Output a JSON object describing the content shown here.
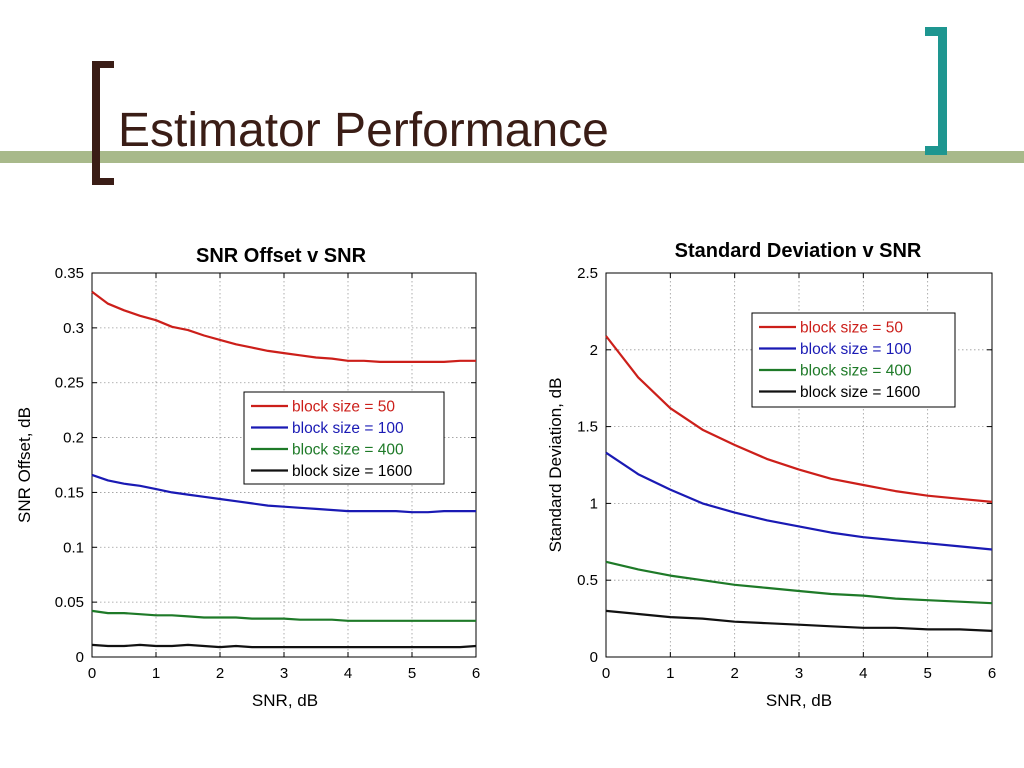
{
  "slide": {
    "title": "Estimator Performance",
    "colors": {
      "title_text": "#3a1d16",
      "left_bracket": "#3a1d16",
      "right_bracket": "#1e9690",
      "rule": "#a8b98a"
    }
  },
  "chart_data": [
    {
      "type": "line",
      "title": "SNR Offset v SNR",
      "xlabel": "SNR, dB",
      "ylabel": "SNR Offset, dB",
      "xlim": [
        0,
        6
      ],
      "ylim": [
        0,
        0.35
      ],
      "xticks": [
        0,
        1,
        2,
        3,
        4,
        5,
        6
      ],
      "xtick_labels": [
        "0",
        "1",
        "2",
        "3",
        "4",
        "5",
        "6"
      ],
      "yticks": [
        0,
        0.05,
        0.1,
        0.15,
        0.2,
        0.25,
        0.3,
        0.35
      ],
      "ytick_labels": [
        "0",
        "0.05",
        "0.1",
        "0.15",
        "0.2",
        "0.25",
        "0.3",
        "0.35"
      ],
      "grid": true,
      "legend_position": "center-right",
      "x": [
        0,
        0.25,
        0.5,
        0.75,
        1.0,
        1.25,
        1.5,
        1.75,
        2.0,
        2.25,
        2.5,
        2.75,
        3.0,
        3.25,
        3.5,
        3.75,
        4.0,
        4.25,
        4.5,
        4.75,
        5.0,
        5.25,
        5.5,
        5.75,
        6.0
      ],
      "series": [
        {
          "name": "block size = 50",
          "color": "#cc1f1a",
          "values": [
            0.333,
            0.322,
            0.316,
            0.311,
            0.307,
            0.301,
            0.298,
            0.293,
            0.289,
            0.285,
            0.282,
            0.279,
            0.277,
            0.275,
            0.273,
            0.272,
            0.27,
            0.27,
            0.269,
            0.269,
            0.269,
            0.269,
            0.269,
            0.27,
            0.27
          ]
        },
        {
          "name": "block size = 100",
          "color": "#1a1ab4",
          "values": [
            0.166,
            0.161,
            0.158,
            0.156,
            0.153,
            0.15,
            0.148,
            0.146,
            0.144,
            0.142,
            0.14,
            0.138,
            0.137,
            0.136,
            0.135,
            0.134,
            0.133,
            0.133,
            0.133,
            0.133,
            0.132,
            0.132,
            0.133,
            0.133,
            0.133
          ]
        },
        {
          "name": "block size = 400",
          "color": "#1e7a28",
          "values": [
            0.042,
            0.04,
            0.04,
            0.039,
            0.038,
            0.038,
            0.037,
            0.036,
            0.036,
            0.036,
            0.035,
            0.035,
            0.035,
            0.034,
            0.034,
            0.034,
            0.033,
            0.033,
            0.033,
            0.033,
            0.033,
            0.033,
            0.033,
            0.033,
            0.033
          ]
        },
        {
          "name": "block size = 1600",
          "color": "#111111",
          "values": [
            0.011,
            0.01,
            0.01,
            0.011,
            0.01,
            0.01,
            0.011,
            0.01,
            0.009,
            0.01,
            0.009,
            0.009,
            0.009,
            0.009,
            0.009,
            0.009,
            0.009,
            0.009,
            0.009,
            0.009,
            0.009,
            0.009,
            0.009,
            0.009,
            0.01
          ]
        }
      ]
    },
    {
      "type": "line",
      "title": "Standard Deviation v SNR",
      "xlabel": "SNR, dB",
      "ylabel": "Standard Deviation, dB",
      "xlim": [
        0,
        6
      ],
      "ylim": [
        0,
        2.5
      ],
      "xticks": [
        0,
        1,
        2,
        3,
        4,
        5,
        6
      ],
      "xtick_labels": [
        "0",
        "1",
        "2",
        "3",
        "4",
        "5",
        "6"
      ],
      "yticks": [
        0,
        0.5,
        1,
        1.5,
        2,
        2.5
      ],
      "ytick_labels": [
        "0",
        "0.5",
        "1",
        "1.5",
        "2",
        "2.5"
      ],
      "grid": true,
      "legend_position": "top-right",
      "x": [
        0,
        0.5,
        1.0,
        1.5,
        2.0,
        2.5,
        3.0,
        3.5,
        4.0,
        4.5,
        5.0,
        5.5,
        6.0
      ],
      "series": [
        {
          "name": "block size = 50",
          "color": "#cc1f1a",
          "values": [
            2.09,
            1.82,
            1.62,
            1.48,
            1.38,
            1.29,
            1.22,
            1.16,
            1.12,
            1.08,
            1.05,
            1.03,
            1.01
          ]
        },
        {
          "name": "block size = 100",
          "color": "#1a1ab4",
          "values": [
            1.33,
            1.19,
            1.09,
            1.0,
            0.94,
            0.89,
            0.85,
            0.81,
            0.78,
            0.76,
            0.74,
            0.72,
            0.7
          ]
        },
        {
          "name": "block size = 400",
          "color": "#1e7a28",
          "values": [
            0.62,
            0.57,
            0.53,
            0.5,
            0.47,
            0.45,
            0.43,
            0.41,
            0.4,
            0.38,
            0.37,
            0.36,
            0.35
          ]
        },
        {
          "name": "block size = 1600",
          "color": "#111111",
          "values": [
            0.3,
            0.28,
            0.26,
            0.25,
            0.23,
            0.22,
            0.21,
            0.2,
            0.19,
            0.19,
            0.18,
            0.18,
            0.17
          ]
        }
      ]
    }
  ]
}
